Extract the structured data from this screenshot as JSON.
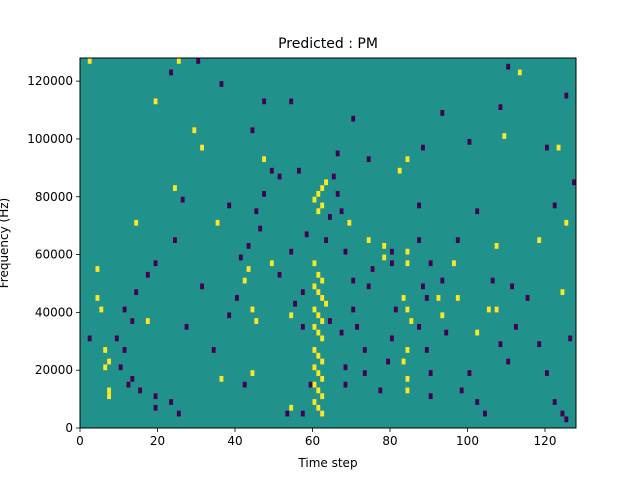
{
  "chart_data": {
    "type": "heatmap",
    "title": "Predicted : PM",
    "xlabel": "Time step",
    "ylabel": "Frequency (Hz)",
    "xlim": [
      0,
      128
    ],
    "ylim": [
      0,
      128000
    ],
    "x_ticks": [
      "0",
      "20",
      "40",
      "60",
      "80",
      "100",
      "120"
    ],
    "y_ticks": [
      "0",
      "20000",
      "40000",
      "60000",
      "80000",
      "100000",
      "120000"
    ],
    "grid": false,
    "colormap": "viridis",
    "background_value": "mid",
    "colors": {
      "mid": "#21918c",
      "high": "#fde725",
      "low": "#440154"
    },
    "high_cells": [
      [
        2,
        126000
      ],
      [
        25,
        126000
      ],
      [
        63,
        84000
      ],
      [
        62,
        82000
      ],
      [
        61,
        80000
      ],
      [
        60,
        78000
      ],
      [
        62,
        76000
      ],
      [
        61,
        74000
      ],
      [
        60,
        56000
      ],
      [
        61,
        52000
      ],
      [
        62,
        50000
      ],
      [
        60,
        48000
      ],
      [
        61,
        46000
      ],
      [
        62,
        44000
      ],
      [
        63,
        42000
      ],
      [
        60,
        40000
      ],
      [
        61,
        38000
      ],
      [
        62,
        36000
      ],
      [
        60,
        34000
      ],
      [
        61,
        32000
      ],
      [
        62,
        30000
      ],
      [
        60,
        26000
      ],
      [
        61,
        24000
      ],
      [
        62,
        22000
      ],
      [
        60,
        20000
      ],
      [
        61,
        18000
      ],
      [
        62,
        16000
      ],
      [
        60,
        14000
      ],
      [
        61,
        12000
      ],
      [
        62,
        10000
      ],
      [
        60,
        8000
      ],
      [
        61,
        6000
      ],
      [
        62,
        4000
      ],
      [
        7,
        10000
      ],
      [
        7,
        12000
      ],
      [
        6,
        20000
      ],
      [
        7,
        22000
      ],
      [
        6,
        26000
      ],
      [
        5,
        40000
      ],
      [
        4,
        44000
      ],
      [
        4,
        54000
      ],
      [
        84,
        92000
      ],
      [
        82,
        88000
      ],
      [
        84,
        60000
      ],
      [
        84,
        56000
      ],
      [
        83,
        44000
      ],
      [
        84,
        40000
      ],
      [
        85,
        36000
      ],
      [
        84,
        26000
      ],
      [
        83,
        22000
      ],
      [
        84,
        16000
      ],
      [
        84,
        12000
      ],
      [
        78,
        62000
      ],
      [
        78,
        58000
      ],
      [
        74,
        64000
      ],
      [
        69,
        70000
      ],
      [
        44,
        40000
      ],
      [
        45,
        36000
      ],
      [
        43,
        54000
      ],
      [
        42,
        50000
      ],
      [
        36,
        16000
      ],
      [
        44,
        18000
      ],
      [
        17,
        36000
      ],
      [
        14,
        70000
      ],
      [
        92,
        44000
      ],
      [
        93,
        38000
      ],
      [
        96,
        56000
      ],
      [
        97,
        44000
      ],
      [
        102,
        32000
      ],
      [
        105,
        40000
      ],
      [
        107,
        40000
      ],
      [
        107,
        62000
      ],
      [
        109,
        100000
      ],
      [
        113,
        122000
      ],
      [
        124,
        46000
      ],
      [
        125,
        70000
      ],
      [
        123,
        96000
      ],
      [
        118,
        64000
      ],
      [
        31,
        96000
      ],
      [
        35,
        70000
      ],
      [
        54,
        38000
      ],
      [
        49,
        56000
      ],
      [
        47,
        92000
      ],
      [
        19,
        112000
      ],
      [
        29,
        102000
      ],
      [
        24,
        82000
      ],
      [
        54,
        6000
      ]
    ],
    "low_cells": [
      [
        56,
        88000
      ],
      [
        44,
        102000
      ],
      [
        36,
        118000
      ],
      [
        47,
        112000
      ],
      [
        54,
        112000
      ],
      [
        23,
        122000
      ],
      [
        30,
        126000
      ],
      [
        2,
        30000
      ],
      [
        10,
        20000
      ],
      [
        12,
        14000
      ],
      [
        11,
        26000
      ],
      [
        19,
        10000
      ],
      [
        19,
        6000
      ],
      [
        23,
        8000
      ],
      [
        25,
        4000
      ],
      [
        27,
        34000
      ],
      [
        31,
        48000
      ],
      [
        34,
        26000
      ],
      [
        40,
        44000
      ],
      [
        42,
        14000
      ],
      [
        38,
        38000
      ],
      [
        41,
        58000
      ],
      [
        43,
        62000
      ],
      [
        46,
        68000
      ],
      [
        51,
        52000
      ],
      [
        54,
        60000
      ],
      [
        53,
        4000
      ],
      [
        57,
        4000
      ],
      [
        59,
        14000
      ],
      [
        57,
        34000
      ],
      [
        55,
        42000
      ],
      [
        57,
        46000
      ],
      [
        58,
        66000
      ],
      [
        63,
        64000
      ],
      [
        64,
        36000
      ],
      [
        67,
        32000
      ],
      [
        68,
        20000
      ],
      [
        68,
        14000
      ],
      [
        70,
        40000
      ],
      [
        71,
        34000
      ],
      [
        73,
        26000
      ],
      [
        73,
        18000
      ],
      [
        74,
        48000
      ],
      [
        75,
        54000
      ],
      [
        77,
        12000
      ],
      [
        79,
        22000
      ],
      [
        80,
        60000
      ],
      [
        80,
        56000
      ],
      [
        81,
        40000
      ],
      [
        80,
        30000
      ],
      [
        87,
        76000
      ],
      [
        87,
        64000
      ],
      [
        88,
        48000
      ],
      [
        89,
        44000
      ],
      [
        89,
        26000
      ],
      [
        90,
        18000
      ],
      [
        90,
        10000
      ],
      [
        94,
        32000
      ],
      [
        98,
        12000
      ],
      [
        100,
        18000
      ],
      [
        102,
        8000
      ],
      [
        104,
        4000
      ],
      [
        106,
        50000
      ],
      [
        108,
        28000
      ],
      [
        110,
        22000
      ],
      [
        111,
        48000
      ],
      [
        112,
        34000
      ],
      [
        115,
        44000
      ],
      [
        118,
        28000
      ],
      [
        120,
        18000
      ],
      [
        122,
        8000
      ],
      [
        124,
        4000
      ],
      [
        125,
        2000
      ],
      [
        126,
        30000
      ],
      [
        127,
        84000
      ],
      [
        122,
        76000
      ],
      [
        120,
        96000
      ],
      [
        125,
        114000
      ],
      [
        110,
        124000
      ],
      [
        108,
        110000
      ],
      [
        93,
        108000
      ],
      [
        100,
        98000
      ],
      [
        102,
        74000
      ],
      [
        97,
        64000
      ],
      [
        90,
        56000
      ],
      [
        93,
        50000
      ],
      [
        87,
        34000
      ],
      [
        88,
        96000
      ],
      [
        66,
        80000
      ],
      [
        66,
        94000
      ],
      [
        70,
        106000
      ],
      [
        74,
        92000
      ],
      [
        65,
        86000
      ],
      [
        64,
        72000
      ],
      [
        67,
        74000
      ],
      [
        68,
        60000
      ],
      [
        70,
        50000
      ],
      [
        49,
        88000
      ],
      [
        51,
        86000
      ],
      [
        47,
        80000
      ],
      [
        45,
        74000
      ],
      [
        38,
        76000
      ],
      [
        26,
        78000
      ],
      [
        24,
        64000
      ],
      [
        19,
        56000
      ],
      [
        17,
        52000
      ],
      [
        14,
        46000
      ],
      [
        11,
        40000
      ],
      [
        13,
        36000
      ],
      [
        9,
        30000
      ],
      [
        13,
        16000
      ],
      [
        15,
        12000
      ]
    ]
  }
}
